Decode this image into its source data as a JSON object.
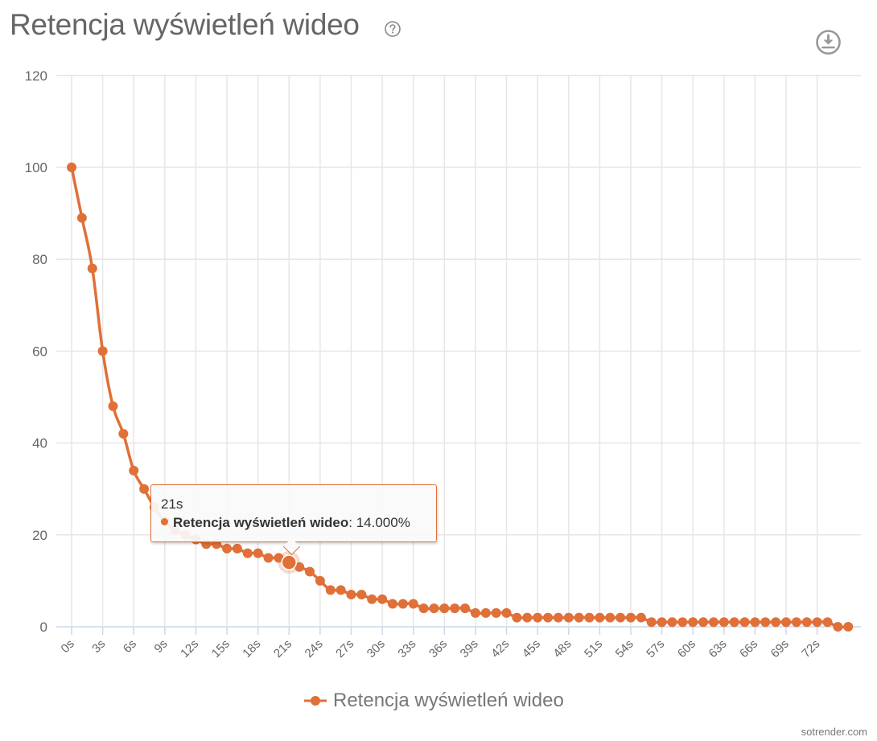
{
  "header": {
    "title": "Retencja wyświetleń wideo",
    "help_icon": "question-circle-icon",
    "download_icon": "download-circle-icon"
  },
  "colors": {
    "series": "#e07038",
    "grid": "#e6e6e6",
    "axis": "#ccd6eb",
    "text": "#666666"
  },
  "tooltip": {
    "x_label": "21s",
    "series_name": "Retencja wyświetleń wideo",
    "value_text": ": 14.000%"
  },
  "legend": {
    "label": "Retencja wyświetleń wideo"
  },
  "watermark": "sotrender.com",
  "chart_data": {
    "type": "line",
    "title": "Retencja wyświetleń wideo",
    "xlabel": "",
    "ylabel": "",
    "ylim": [
      0,
      120
    ],
    "y_ticks": [
      0,
      20,
      40,
      60,
      80,
      100,
      120
    ],
    "x_tick_labels": [
      "0s",
      "3s",
      "6s",
      "9s",
      "12s",
      "15s",
      "18s",
      "21s",
      "24s",
      "27s",
      "30s",
      "33s",
      "36s",
      "39s",
      "42s",
      "45s",
      "48s",
      "51s",
      "54s",
      "57s",
      "60s",
      "63s",
      "66s",
      "69s",
      "72s"
    ],
    "grid": true,
    "legend_position": "bottom-center",
    "x": [
      0,
      1,
      2,
      3,
      4,
      5,
      6,
      7,
      8,
      9,
      10,
      11,
      12,
      13,
      14,
      15,
      16,
      17,
      18,
      19,
      20,
      21,
      22,
      23,
      24,
      25,
      26,
      27,
      28,
      29,
      30,
      31,
      32,
      33,
      34,
      35,
      36,
      37,
      38,
      39,
      40,
      41,
      42,
      43,
      44,
      45,
      46,
      47,
      48,
      49,
      50,
      51,
      52,
      53,
      54,
      55,
      56,
      57,
      58,
      59,
      60,
      61,
      62,
      63,
      64,
      65,
      66,
      67,
      68,
      69,
      70,
      71,
      72,
      73,
      74,
      75
    ],
    "series": [
      {
        "name": "Retencja wyświetleń wideo",
        "values": [
          100,
          89,
          78,
          60,
          48,
          42,
          34,
          30,
          26,
          23,
          21,
          20,
          19,
          18,
          18,
          17,
          17,
          16,
          16,
          15,
          15,
          14,
          13,
          12,
          10,
          8,
          8,
          7,
          7,
          6,
          6,
          5,
          5,
          5,
          4,
          4,
          4,
          4,
          4,
          3,
          3,
          3,
          3,
          2,
          2,
          2,
          2,
          2,
          2,
          2,
          2,
          2,
          2,
          2,
          2,
          2,
          1,
          1,
          1,
          1,
          1,
          1,
          1,
          1,
          1,
          1,
          1,
          1,
          1,
          1,
          1,
          1,
          1,
          1,
          0,
          0
        ]
      }
    ],
    "highlighted_point": {
      "x": "21s",
      "value": 14.0
    }
  }
}
